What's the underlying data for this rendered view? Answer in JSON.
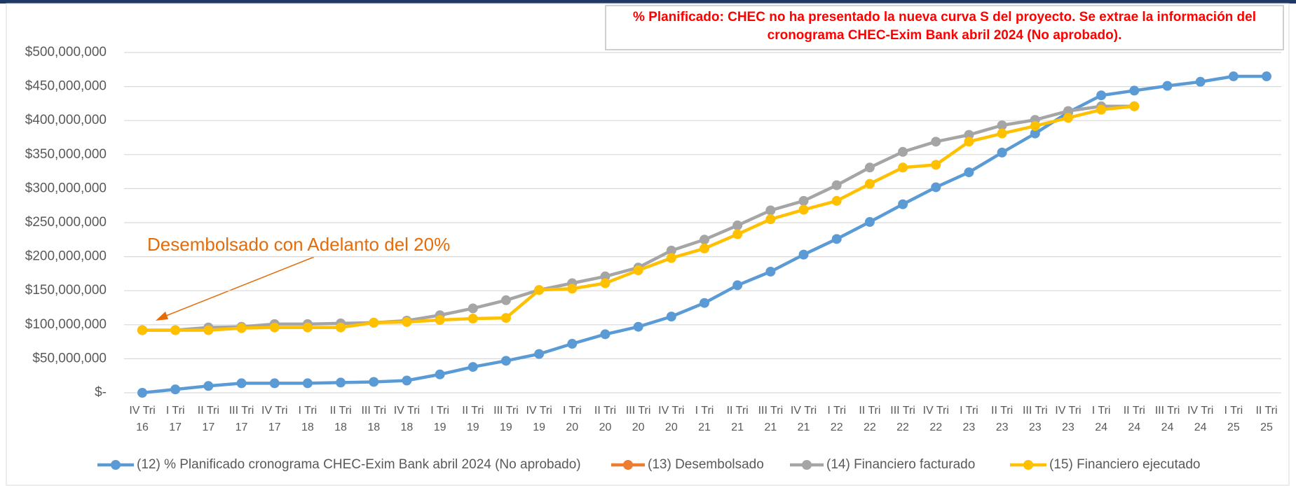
{
  "chart_data": {
    "type": "line",
    "annotations": [
      "% Planificado: CHEC no ha presentado la nueva curva S del proyecto. Se extrae la información del cronograma CHEC-Exim Bank abril 2024 (No aprobado).",
      "Desembolsado con Adelanto del 20%"
    ],
    "categories": [
      "IV Tri 16",
      "I Tri 17",
      "II Tri 17",
      "III Tri 17",
      "IV Tri 17",
      "I Tri 18",
      "II Tri 18",
      "III Tri 18",
      "IV Tri 18",
      "I Tri 19",
      "II Tri 19",
      "III Tri 19",
      "IV Tri 19",
      "I Tri 20",
      "II Tri 20",
      "III Tri 20",
      "IV Tri 20",
      "I Tri 21",
      "II Tri 21",
      "III Tri 21",
      "IV Tri 21",
      "I Tri 22",
      "II Tri 22",
      "III Tri 22",
      "IV Tri 22",
      "I Tri 23",
      "II Tri 23",
      "III Tri 23",
      "IV Tri 23",
      "I Tri 24",
      "II Tri 24",
      "III Tri 24",
      "IV Tri 24",
      "I Tri 25",
      "II Tri 25"
    ],
    "series": [
      {
        "name": "(12) % Planificado cronograma CHEC-Exim Bank abril 2024 (No aprobado)",
        "color": "#5b9bd5",
        "values": [
          0,
          5000000,
          10000000,
          14000000,
          14000000,
          14000000,
          15000000,
          16000000,
          18000000,
          27000000,
          38000000,
          47000000,
          57000000,
          72000000,
          86000000,
          97000000,
          112000000,
          132000000,
          158000000,
          178000000,
          203000000,
          226000000,
          251000000,
          277000000,
          302000000,
          324000000,
          353000000,
          381000000,
          412000000,
          437000000,
          444000000,
          451000000,
          457000000,
          465000000,
          465000000
        ]
      },
      {
        "name": "(13) Desembolsado",
        "color": "#ed7d31",
        "values": [
          92000000,
          null,
          null,
          null,
          null,
          null,
          null,
          null,
          null,
          null,
          null,
          null,
          null,
          null,
          null,
          null,
          null,
          null,
          null,
          null,
          null,
          null,
          null,
          null,
          null,
          null,
          null,
          null,
          null,
          null,
          null,
          null,
          null,
          null,
          null
        ]
      },
      {
        "name": "(14) Financiero facturado",
        "color": "#a5a5a5",
        "values": [
          92000000,
          92000000,
          96000000,
          97000000,
          101000000,
          101000000,
          102000000,
          103000000,
          106000000,
          114000000,
          124000000,
          136000000,
          151000000,
          161000000,
          171000000,
          184000000,
          209000000,
          225000000,
          246000000,
          268000000,
          282000000,
          305000000,
          331000000,
          354000000,
          369000000,
          379000000,
          393000000,
          401000000,
          414000000,
          421000000,
          421000000,
          null,
          null,
          null,
          null
        ]
      },
      {
        "name": "(15) Financiero ejecutado",
        "color": "#ffc000",
        "values": [
          92000000,
          92000000,
          92000000,
          95000000,
          96000000,
          96000000,
          96000000,
          103000000,
          104000000,
          107000000,
          109000000,
          110000000,
          151000000,
          153000000,
          161000000,
          180000000,
          198000000,
          212000000,
          233000000,
          255000000,
          269000000,
          282000000,
          307000000,
          331000000,
          335000000,
          369000000,
          381000000,
          392000000,
          404000000,
          416000000,
          421000000,
          null,
          null,
          null,
          null
        ]
      }
    ],
    "ylim": [
      0,
      500000000
    ],
    "yticks": [
      {
        "value": 0,
        "label": "$-"
      },
      {
        "value": 50000000,
        "label": "$50,000,000"
      },
      {
        "value": 100000000,
        "label": "$100,000,000"
      },
      {
        "value": 150000000,
        "label": "$150,000,000"
      },
      {
        "value": 200000000,
        "label": "$200,000,000"
      },
      {
        "value": 250000000,
        "label": "$250,000,000"
      },
      {
        "value": 300000000,
        "label": "$300,000,000"
      },
      {
        "value": 350000000,
        "label": "$350,000,000"
      },
      {
        "value": 400000000,
        "label": "$400,000,000"
      },
      {
        "value": 450000000,
        "label": "$450,000,000"
      },
      {
        "value": 500000000,
        "label": "$500,000,000"
      }
    ],
    "grid": true,
    "legend": "bottom"
  }
}
